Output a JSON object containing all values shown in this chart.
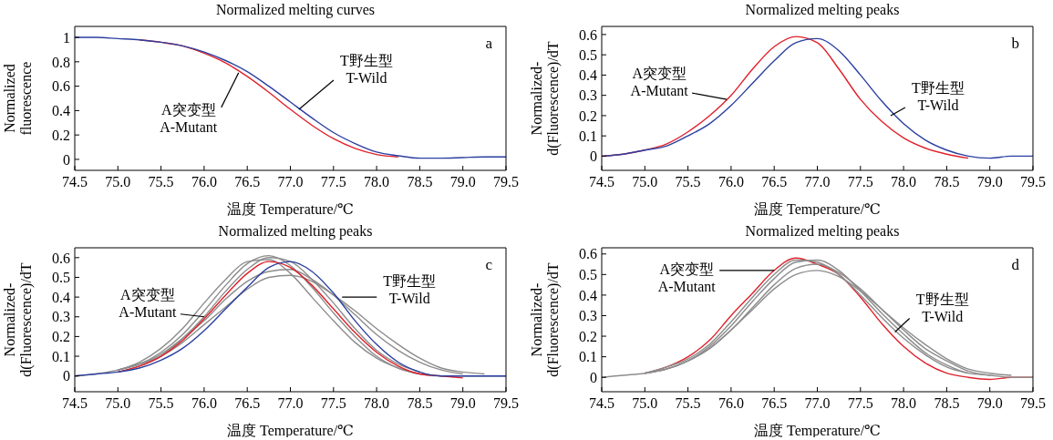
{
  "chart_data": [
    {
      "type": "line",
      "title": "Normalized melting curves",
      "xlabel": "温度  Temperature/℃",
      "ylabel": "Normalized\nfluorescence",
      "xlim": [
        74.5,
        79.5
      ],
      "xticks": [
        74.5,
        {
          "value": 75,
          "label": "75.0"
        },
        75.5,
        {
          "value": 76,
          "label": "76.0"
        },
        76.5,
        {
          "value": 77,
          "label": "77.0"
        },
        77.5,
        {
          "value": 78,
          "label": "78.0"
        },
        78.5,
        {
          "value": 79,
          "label": "79.0"
        },
        79.5
      ],
      "ylim": [
        -0.09,
        1.09
      ],
      "yticks": [
        0,
        0.2,
        0.4,
        0.6,
        0.8,
        1
      ],
      "marker": "none",
      "line_style": "solid",
      "x": [
        74.5,
        74.75,
        75,
        75.25,
        75.5,
        75.75,
        76,
        76.25,
        76.5,
        76.75,
        77,
        77.25,
        77.5,
        77.75,
        78,
        78.25,
        78.5,
        78.75,
        79,
        79.25,
        79.5
      ],
      "series": [
        {
          "color": "#e0202a",
          "values": [
            null,
            null,
            null,
            0.98,
            0.96,
            0.93,
            0.87,
            0.79,
            0.68,
            0.55,
            0.41,
            0.28,
            0.17,
            0.09,
            0.04,
            0.02,
            null,
            null,
            null,
            null,
            null
          ]
        },
        {
          "color": "#2b3fa0",
          "values": [
            1,
            1,
            0.99,
            0.98,
            0.96,
            0.93,
            0.88,
            0.81,
            0.72,
            0.6,
            0.47,
            0.34,
            0.22,
            0.13,
            0.06,
            0.03,
            0.01,
            0.01,
            0.015,
            0.02,
            0.02
          ]
        }
      ],
      "annotations": [
        "a",
        {
          "text": "A突变型\nA-Mutant",
          "x": 76.4,
          "y": 0.71
        },
        {
          "text": "T野生型\nT-Wild",
          "x": 77.1,
          "y": 0.41
        }
      ]
    },
    {
      "type": "line",
      "title": "Normalized melting peaks",
      "xlabel": "温度  Temperature/℃",
      "ylabel": "Normalized-\nd(Fluorescence)/dT",
      "xlim": [
        74.5,
        79.5
      ],
      "xticks": [
        74.5,
        {
          "value": 75,
          "label": "75.0"
        },
        75.5,
        {
          "value": 76,
          "label": "76.0"
        },
        76.5,
        {
          "value": 77,
          "label": "77.0"
        },
        77.5,
        {
          "value": 78,
          "label": "78.0"
        },
        78.5,
        {
          "value": 79,
          "label": "79.0"
        },
        79.5
      ],
      "ylim": [
        -0.07,
        0.64
      ],
      "yticks": [
        0,
        0.1,
        0.2,
        0.3,
        0.4,
        0.5,
        0.6
      ],
      "marker": "none",
      "line_style": "solid",
      "x": [
        74.5,
        74.75,
        75,
        75.25,
        75.5,
        75.75,
        76,
        76.25,
        76.5,
        76.75,
        77,
        77.25,
        77.5,
        77.75,
        78,
        78.25,
        78.5,
        78.75,
        79,
        79.25,
        79.5
      ],
      "series": [
        {
          "color": "#e0202a",
          "values": [
            0,
            0.01,
            0.03,
            0.06,
            0.12,
            0.2,
            0.3,
            0.43,
            0.54,
            0.59,
            0.56,
            0.43,
            0.28,
            0.17,
            0.09,
            0.04,
            0.01,
            -0.01,
            null,
            null,
            null
          ]
        },
        {
          "color": "#2b3fa0",
          "values": [
            0,
            0.01,
            0.03,
            0.05,
            0.1,
            0.16,
            0.25,
            0.36,
            0.47,
            0.56,
            0.58,
            0.52,
            0.4,
            0.27,
            0.16,
            0.08,
            0.03,
            0,
            -0.01,
            0,
            0
          ]
        }
      ],
      "annotations": [
        "b",
        {
          "text": "A突变型\nA-Mutant",
          "x": 75.95,
          "y": 0.28
        },
        {
          "text": "T野生型\nT-Wild",
          "x": 77.85,
          "y": 0.2
        }
      ]
    },
    {
      "type": "line",
      "title": "Normalized melting peaks",
      "xlabel": "温度  Temperature/℃",
      "ylabel": "Normalized-\nd(Fluorescence)/dT",
      "xlim": [
        74.5,
        79.5
      ],
      "xticks": [
        74.5,
        {
          "value": 75,
          "label": "75.0"
        },
        75.5,
        {
          "value": 76,
          "label": "76.0"
        },
        76.5,
        {
          "value": 77,
          "label": "77.0"
        },
        77.5,
        {
          "value": 78,
          "label": "78.0"
        },
        78.5,
        {
          "value": 79,
          "label": "79.0"
        },
        79.5
      ],
      "ylim": [
        -0.08,
        0.65
      ],
      "yticks": [
        0,
        0.1,
        0.2,
        0.3,
        0.4,
        0.5,
        0.6
      ],
      "marker": "none",
      "line_style": "solid",
      "x": [
        74.5,
        74.75,
        75,
        75.25,
        75.5,
        75.75,
        76,
        76.25,
        76.5,
        76.75,
        77,
        77.25,
        77.5,
        77.75,
        78,
        78.25,
        78.5,
        78.75,
        79,
        79.25,
        79.5
      ],
      "series": [
        {
          "color": "#8c8c8c",
          "values": [
            0,
            0.01,
            0.03,
            0.06,
            0.12,
            0.21,
            0.33,
            0.46,
            0.57,
            0.61,
            0.56,
            0.45,
            0.32,
            0.2,
            0.1,
            0.04,
            0.01,
            0,
            0,
            0,
            0
          ]
        },
        {
          "color": "#8c8c8c",
          "values": [
            null,
            null,
            0.02,
            0.05,
            0.1,
            0.19,
            0.3,
            0.43,
            0.54,
            0.6,
            0.58,
            0.49,
            0.37,
            0.24,
            0.13,
            0.06,
            0.02,
            null,
            null,
            null,
            null
          ]
        },
        {
          "color": "#8c8c8c",
          "values": [
            null,
            null,
            0.03,
            0.06,
            0.11,
            0.19,
            0.28,
            0.39,
            0.48,
            0.53,
            0.54,
            0.49,
            0.41,
            0.31,
            0.21,
            0.13,
            0.07,
            0.03,
            0.01,
            null,
            null
          ]
        },
        {
          "color": "#8c8c8c",
          "values": [
            null,
            null,
            0.03,
            0.06,
            0.1,
            0.17,
            0.26,
            0.35,
            0.44,
            0.5,
            0.51,
            0.48,
            0.41,
            0.33,
            0.24,
            0.16,
            0.09,
            0.04,
            0.02,
            0.01,
            null
          ]
        },
        {
          "color": "#8c8c8c",
          "values": [
            null,
            null,
            0.03,
            0.07,
            0.14,
            0.24,
            0.37,
            0.49,
            0.58,
            0.59,
            0.52,
            0.4,
            0.28,
            0.17,
            0.09,
            0.04,
            0.01,
            null,
            null,
            null,
            null
          ]
        },
        {
          "color": "#e0202a",
          "values": [
            null,
            null,
            0.02,
            0.05,
            0.1,
            0.18,
            0.29,
            0.41,
            0.52,
            0.58,
            0.55,
            0.46,
            0.34,
            0.22,
            0.12,
            0.05,
            0.01,
            0,
            -0.01,
            null,
            null
          ]
        },
        {
          "color": "#2b3fa0",
          "values": [
            0,
            0.01,
            0.02,
            0.04,
            0.08,
            0.14,
            0.23,
            0.34,
            0.45,
            0.55,
            0.58,
            0.53,
            0.42,
            0.28,
            0.16,
            0.07,
            0.02,
            0,
            0,
            0,
            0
          ]
        }
      ],
      "annotations": [
        "c",
        {
          "text": "A突变型\nA-Mutant",
          "x": 76.0,
          "y": 0.3
        },
        {
          "text": "T野生型\nT-Wild",
          "x": 77.6,
          "y": 0.4
        }
      ]
    },
    {
      "type": "line",
      "title": "Normalized melting peaks",
      "xlabel": "温度  Temperature/℃",
      "ylabel": "Normalized-\nd(Fluorescence)/dT",
      "xlim": [
        74.5,
        79.5
      ],
      "xticks": [
        74.5,
        {
          "value": 75,
          "label": "75.0"
        },
        75.5,
        {
          "value": 76,
          "label": "76.0"
        },
        76.5,
        {
          "value": 77,
          "label": "77.0"
        },
        77.5,
        {
          "value": 78,
          "label": "78.0"
        },
        78.5,
        {
          "value": 79,
          "label": "79.0"
        },
        79.5
      ],
      "ylim": [
        -0.07,
        0.63
      ],
      "yticks": [
        0,
        0.1,
        0.2,
        0.3,
        0.4,
        0.5,
        0.6
      ],
      "marker": "none",
      "line_style": "solid",
      "x": [
        74.5,
        74.75,
        75,
        75.25,
        75.5,
        75.75,
        76,
        76.25,
        76.5,
        76.75,
        77,
        77.25,
        77.5,
        77.75,
        78,
        78.25,
        78.5,
        78.75,
        79,
        79.25,
        79.5
      ],
      "series": [
        {
          "color": "#e0202a",
          "values": [
            null,
            null,
            0.02,
            0.05,
            0.1,
            0.18,
            0.3,
            0.41,
            0.52,
            0.58,
            0.55,
            0.5,
            0.39,
            0.26,
            0.15,
            0.07,
            0.02,
            0,
            -0.01,
            0,
            0
          ]
        },
        {
          "color": "#8c8c8c",
          "values": [
            0,
            0.01,
            0.02,
            0.04,
            0.08,
            0.15,
            0.25,
            0.37,
            0.48,
            0.56,
            0.57,
            0.52,
            0.42,
            0.31,
            0.21,
            0.12,
            0.06,
            0.02,
            0.01,
            0,
            0
          ]
        },
        {
          "color": "#8c8c8c",
          "values": [
            null,
            null,
            0.02,
            0.04,
            0.08,
            0.14,
            0.23,
            0.34,
            0.45,
            0.53,
            0.55,
            0.51,
            0.43,
            0.33,
            0.23,
            0.14,
            0.08,
            0.03,
            0.01,
            null,
            null
          ]
        },
        {
          "color": "#8c8c8c",
          "values": [
            null,
            null,
            0.02,
            0.04,
            0.08,
            0.14,
            0.23,
            0.33,
            0.43,
            0.5,
            0.52,
            0.49,
            0.42,
            0.33,
            0.24,
            0.16,
            0.09,
            0.04,
            0.02,
            0.01,
            null
          ]
        },
        {
          "color": "#8c8c8c",
          "values": [
            null,
            null,
            0.02,
            0.05,
            0.09,
            0.16,
            0.27,
            0.39,
            0.5,
            0.57,
            0.56,
            0.5,
            0.4,
            0.29,
            0.19,
            0.11,
            0.05,
            0.02,
            null,
            null,
            null
          ]
        }
      ],
      "annotations": [
        "d",
        {
          "text": "A突变型\nA-Mutant",
          "x": 76.5,
          "y": 0.52
        },
        {
          "text": "T野生型\nT-Wild",
          "x": 77.9,
          "y": 0.22
        }
      ]
    }
  ]
}
